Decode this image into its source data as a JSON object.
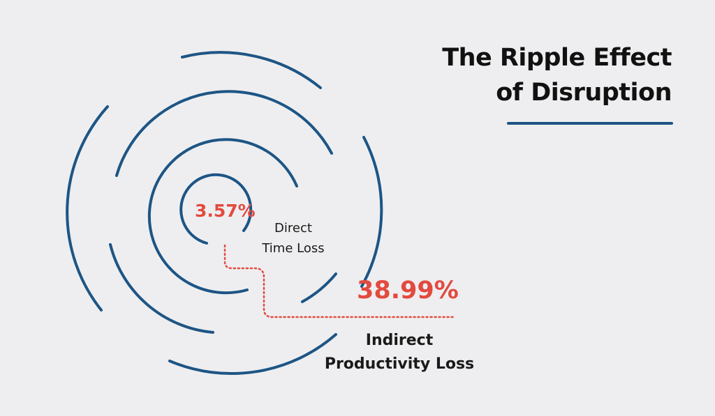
{
  "title": {
    "line1": "The Ripple Effect",
    "line2": "of Disruption"
  },
  "direct": {
    "value": "3.57%",
    "label_line1": "Direct",
    "label_line2": "Time Loss"
  },
  "indirect": {
    "value": "38.99%",
    "label_line1": "Indirect",
    "label_line2": "Productivity Loss"
  },
  "colors": {
    "background": "#eeeef0",
    "ring": "#1d5585",
    "accent": "#e34a3f",
    "text": "#111111"
  }
}
